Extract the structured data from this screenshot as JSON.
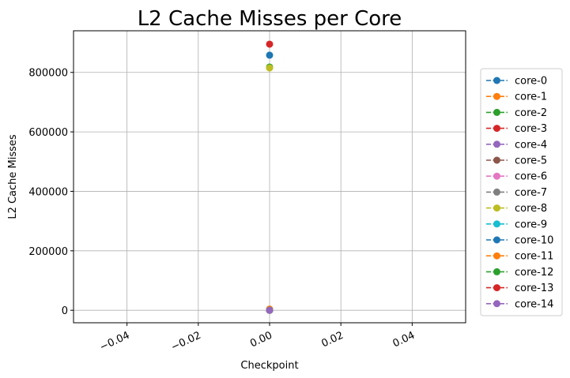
{
  "chart_data": {
    "type": "line",
    "title": "L2 Cache Misses per Core",
    "xlabel": "Checkpoint",
    "ylabel": "L2 Cache Misses",
    "xlim": [
      -0.055,
      0.055
    ],
    "ylim": [
      -42000,
      940000
    ],
    "x_ticks": [
      -0.04,
      -0.02,
      0.0,
      0.02,
      0.04
    ],
    "x_tick_labels": [
      "−0.04",
      "−0.02",
      "0.00",
      "0.02",
      "0.04"
    ],
    "y_ticks": [
      0,
      200000,
      400000,
      600000,
      800000
    ],
    "y_tick_labels": [
      "0",
      "200000",
      "400000",
      "600000",
      "800000"
    ],
    "grid": true,
    "legend_position": "outside-right",
    "line_style": "dashed",
    "marker": "circle",
    "series": [
      {
        "name": "core-0",
        "color": "#1f77b4",
        "x": [
          0.0
        ],
        "values": [
          858000
        ]
      },
      {
        "name": "core-1",
        "color": "#ff7f0e",
        "x": [
          0.0
        ],
        "values": [
          4000
        ]
      },
      {
        "name": "core-2",
        "color": "#2ca02c",
        "x": [
          0.0
        ],
        "values": [
          818000
        ]
      },
      {
        "name": "core-3",
        "color": "#d62728",
        "x": [
          0.0
        ],
        "values": [
          0
        ]
      },
      {
        "name": "core-4",
        "color": "#9467bd",
        "x": [
          0.0
        ],
        "values": [
          0
        ]
      },
      {
        "name": "core-5",
        "color": "#8c564b",
        "x": [
          0.0
        ],
        "values": [
          0
        ]
      },
      {
        "name": "core-6",
        "color": "#e377c2",
        "x": [
          0.0
        ],
        "values": [
          0
        ]
      },
      {
        "name": "core-7",
        "color": "#7f7f7f",
        "x": [
          0.0
        ],
        "values": [
          0
        ]
      },
      {
        "name": "core-8",
        "color": "#bcbd22",
        "x": [
          0.0
        ],
        "values": [
          815000
        ]
      },
      {
        "name": "core-9",
        "color": "#17becf",
        "x": [
          0.0
        ],
        "values": [
          0
        ]
      },
      {
        "name": "core-10",
        "color": "#1f77b4",
        "x": [
          0.0
        ],
        "values": [
          0
        ]
      },
      {
        "name": "core-11",
        "color": "#ff7f0e",
        "x": [
          0.0
        ],
        "values": [
          0
        ]
      },
      {
        "name": "core-12",
        "color": "#2ca02c",
        "x": [
          0.0
        ],
        "values": [
          0
        ]
      },
      {
        "name": "core-13",
        "color": "#d62728",
        "x": [
          0.0
        ],
        "values": [
          895000
        ]
      },
      {
        "name": "core-14",
        "color": "#9467bd",
        "x": [
          0.0
        ],
        "values": [
          0
        ]
      }
    ]
  }
}
